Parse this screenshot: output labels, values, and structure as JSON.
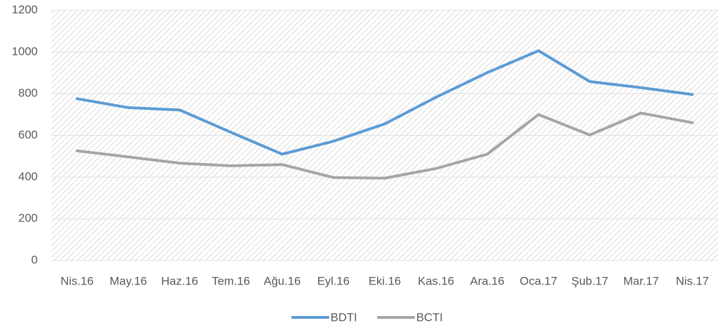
{
  "chart_data": {
    "type": "line",
    "categories": [
      "Nis.16",
      "May.16",
      "Haz.16",
      "Tem.16",
      "Ağu.16",
      "Eyl.16",
      "Eki.16",
      "Kas.16",
      "Ara.16",
      "Oca.17",
      "Şub.17",
      "Mar.17",
      "Nis.17"
    ],
    "series": [
      {
        "name": "BDTI",
        "color": "#5b9bd5",
        "values": [
          776,
          733,
          722,
          615,
          510,
          572,
          655,
          783,
          901,
          1006,
          858,
          829,
          796
        ]
      },
      {
        "name": "BCTI",
        "color": "#a5a5a5",
        "values": [
          526,
          497,
          467,
          454,
          460,
          398,
          395,
          441,
          510,
          700,
          602,
          707,
          661
        ]
      }
    ],
    "ylim": [
      0,
      1200
    ],
    "yticks": [
      0,
      200,
      400,
      600,
      800,
      1000,
      1200
    ],
    "grid": true,
    "legend": "bottom"
  }
}
